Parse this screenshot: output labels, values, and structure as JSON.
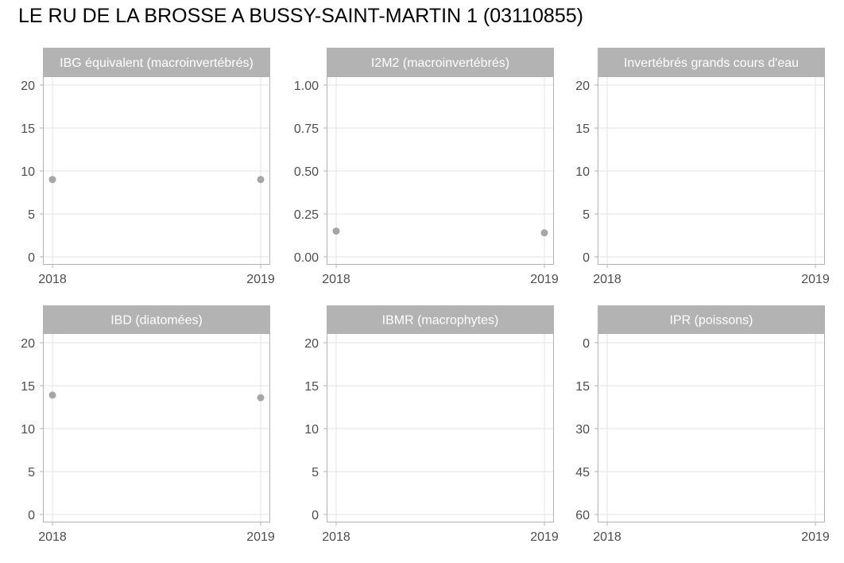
{
  "title": "LE RU DE LA BROSSE A BUSSY-SAINT-MARTIN 1 (03110855)",
  "colors": {
    "strip": "#b3b3b3",
    "strip_text": "#ffffff",
    "panel_border": "#b3b3b3",
    "grid": "#e3e3e3",
    "point": "#a6a6a6",
    "tick_text": "#4d4d4d"
  },
  "chart_data": [
    {
      "type": "scatter",
      "title": "IBG équivalent (macroinvertébrés)",
      "x_ticks": [
        "2018",
        "2019"
      ],
      "xlim": [
        2018,
        2019
      ],
      "ylim": [
        0,
        20
      ],
      "y_reversed": false,
      "y_ticks": [
        0,
        5,
        10,
        15,
        20
      ],
      "y_tick_labels": [
        "0",
        "5",
        "10",
        "15",
        "20"
      ],
      "points": [
        {
          "x": 2018,
          "y": 9
        },
        {
          "x": 2019,
          "y": 9
        }
      ]
    },
    {
      "type": "scatter",
      "title": "I2M2 (macroinvertébrés)",
      "x_ticks": [
        "2018",
        "2019"
      ],
      "xlim": [
        2018,
        2019
      ],
      "ylim": [
        0,
        1
      ],
      "y_reversed": false,
      "y_ticks": [
        0,
        0.25,
        0.5,
        0.75,
        1
      ],
      "y_tick_labels": [
        "0.00",
        "0.25",
        "0.50",
        "0.75",
        "1.00"
      ],
      "points": [
        {
          "x": 2018,
          "y": 0.15
        },
        {
          "x": 2019,
          "y": 0.14
        }
      ]
    },
    {
      "type": "scatter",
      "title": "Invertébrés grands cours d'eau",
      "x_ticks": [
        "2018",
        "2019"
      ],
      "xlim": [
        2018,
        2019
      ],
      "ylim": [
        0,
        20
      ],
      "y_reversed": false,
      "y_ticks": [
        0,
        5,
        10,
        15,
        20
      ],
      "y_tick_labels": [
        "0",
        "5",
        "10",
        "15",
        "20"
      ],
      "points": []
    },
    {
      "type": "scatter",
      "title": "IBD (diatomées)",
      "x_ticks": [
        "2018",
        "2019"
      ],
      "xlim": [
        2018,
        2019
      ],
      "ylim": [
        0,
        20
      ],
      "y_reversed": false,
      "y_ticks": [
        0,
        5,
        10,
        15,
        20
      ],
      "y_tick_labels": [
        "0",
        "5",
        "10",
        "15",
        "20"
      ],
      "points": [
        {
          "x": 2018,
          "y": 13.9
        },
        {
          "x": 2019,
          "y": 13.6
        }
      ]
    },
    {
      "type": "scatter",
      "title": "IBMR (macrophytes)",
      "x_ticks": [
        "2018",
        "2019"
      ],
      "xlim": [
        2018,
        2019
      ],
      "ylim": [
        0,
        20
      ],
      "y_reversed": false,
      "y_ticks": [
        0,
        5,
        10,
        15,
        20
      ],
      "y_tick_labels": [
        "0",
        "5",
        "10",
        "15",
        "20"
      ],
      "points": []
    },
    {
      "type": "scatter",
      "title": "IPR (poissons)",
      "x_ticks": [
        "2018",
        "2019"
      ],
      "xlim": [
        2018,
        2019
      ],
      "ylim": [
        0,
        60
      ],
      "y_reversed": true,
      "y_ticks": [
        0,
        15,
        30,
        45,
        60
      ],
      "y_tick_labels": [
        "0",
        "15",
        "30",
        "45",
        "60"
      ],
      "points": []
    }
  ]
}
